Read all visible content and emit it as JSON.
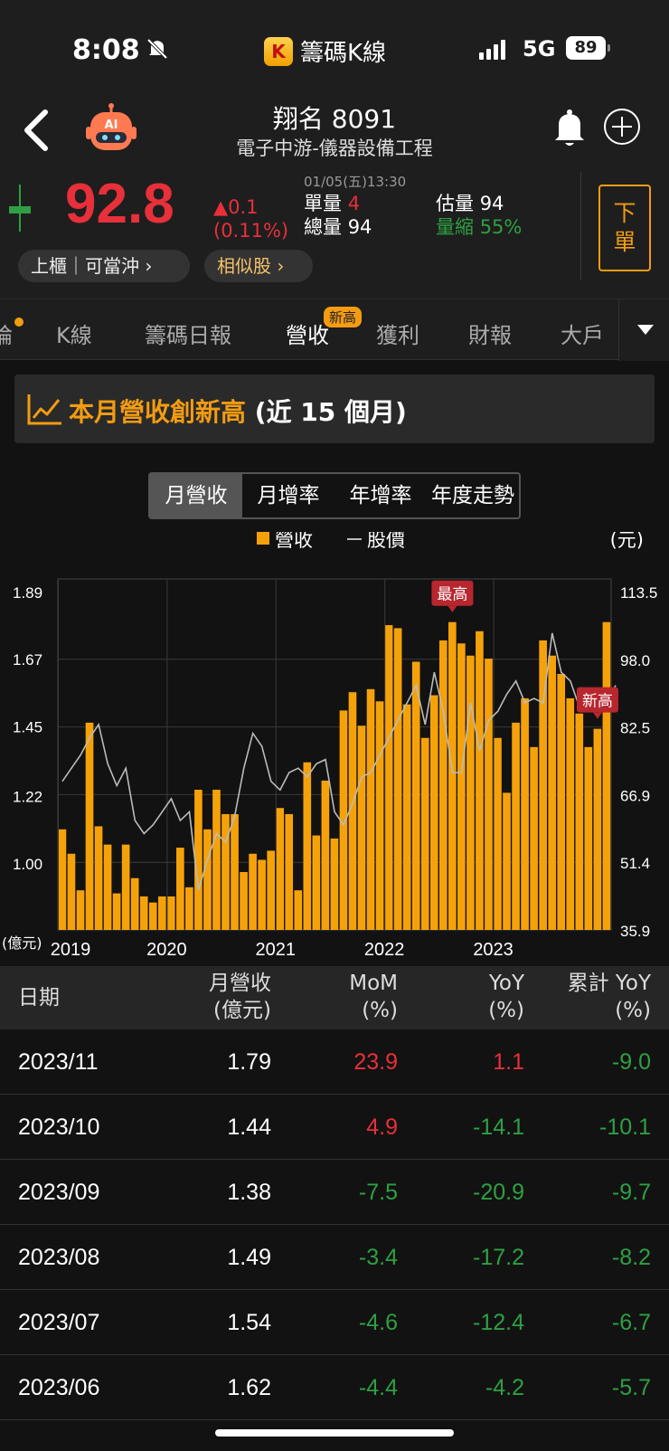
{
  "status": {
    "time": "8:08",
    "app_name": "籌碼K線",
    "network": "5G",
    "battery": "89"
  },
  "header": {
    "title": "翔名 8091",
    "subtitle": "電子中游-儀器設備工程",
    "price": "92.8",
    "change": "▲0.1",
    "change_pct": "(0.11%)",
    "datetime": "01/05(五)13:30",
    "single_vol_label": "單量",
    "single_vol": "4",
    "total_vol_label": "總量",
    "total_vol": "94",
    "est_vol_label": "估量",
    "est_vol": "94",
    "shrink_label": "量縮",
    "shrink": "55%",
    "order_label": "下單",
    "chip_market": "上櫃｜可當沖 ›",
    "chip_similar": "相似股 ›"
  },
  "tabs": [
    "論",
    "K線",
    "籌碼日報",
    "營收",
    "獲利",
    "財報",
    "大戶"
  ],
  "tab_badge": "新高",
  "banner": {
    "highlight": "本月營收創新高",
    "suffix": "(近 15 個月)"
  },
  "segments": [
    "月營收",
    "月增率",
    "年增率",
    "年度走勢"
  ],
  "chart_data": {
    "type": "bar",
    "legend": [
      "營收",
      "股價"
    ],
    "legend_placement": "top-center",
    "y_left_label": "(億元)",
    "y_right_label": "(元)",
    "y_left_ticks": [
      "1.89",
      "1.67",
      "1.45",
      "1.22",
      "1.00"
    ],
    "y_right_ticks": [
      "113.5",
      "98.0",
      "82.5",
      "66.9",
      "51.4",
      "35.9"
    ],
    "x_ticks": [
      "2019",
      "2020",
      "2021",
      "2022",
      "2023"
    ],
    "y_left_range": [
      0.78,
      1.89
    ],
    "y_right_range": [
      35.9,
      113.5
    ],
    "annotations": [
      {
        "text": "最高",
        "index": 43
      },
      {
        "text": "新高",
        "index": 59
      }
    ],
    "revenue": [
      1.11,
      1.03,
      0.91,
      1.46,
      1.12,
      1.06,
      0.9,
      1.06,
      0.95,
      0.89,
      0.87,
      0.89,
      0.89,
      1.05,
      0.92,
      1.24,
      1.11,
      1.24,
      1.16,
      1.16,
      0.97,
      1.03,
      1.01,
      1.04,
      1.18,
      1.16,
      0.91,
      1.33,
      1.09,
      1.27,
      1.08,
      1.5,
      1.56,
      1.45,
      1.57,
      1.53,
      1.78,
      1.77,
      1.52,
      1.66,
      1.41,
      1.55,
      1.73,
      1.79,
      1.72,
      1.68,
      1.76,
      1.67,
      1.41,
      1.23,
      1.46,
      1.54,
      1.38,
      1.73,
      1.68,
      1.62,
      1.54,
      1.49,
      1.38,
      1.44,
      1.79
    ],
    "price": [
      70,
      73,
      76,
      80,
      83,
      74,
      69,
      73,
      61,
      58,
      60,
      63,
      66,
      61,
      63,
      45,
      52,
      58,
      56,
      62,
      73,
      81,
      78,
      70,
      68,
      72,
      73,
      71,
      74,
      75,
      63,
      60,
      65,
      71,
      72,
      76,
      80,
      84,
      88,
      92,
      83,
      95,
      86,
      72,
      72,
      88,
      77,
      84,
      86,
      90,
      93,
      88,
      89,
      88,
      104,
      95,
      93,
      87,
      90,
      87,
      88,
      92
    ]
  },
  "table": {
    "headers": [
      {
        "l1": "日期",
        "l2": ""
      },
      {
        "l1": "月營收",
        "l2": "(億元)"
      },
      {
        "l1": "MoM",
        "l2": "(%)"
      },
      {
        "l1": "YoY",
        "l2": "(%)"
      },
      {
        "l1": "累計 YoY",
        "l2": "(%)"
      }
    ],
    "rows": [
      [
        "2023/11",
        "1.79",
        "23.9",
        "1.1",
        "-9.0"
      ],
      [
        "2023/10",
        "1.44",
        "4.9",
        "-14.1",
        "-10.1"
      ],
      [
        "2023/09",
        "1.38",
        "-7.5",
        "-20.9",
        "-9.7"
      ],
      [
        "2023/08",
        "1.49",
        "-3.4",
        "-17.2",
        "-8.2"
      ],
      [
        "2023/07",
        "1.54",
        "-4.6",
        "-12.4",
        "-6.7"
      ],
      [
        "2023/06",
        "1.62",
        "-4.4",
        "-4.2",
        "-5.7"
      ]
    ]
  },
  "colors": {
    "accent": "#f39c12",
    "up": "#e8303a",
    "down": "#2ea043",
    "bar": "#f5a20a",
    "line": "#bbbbbb"
  }
}
